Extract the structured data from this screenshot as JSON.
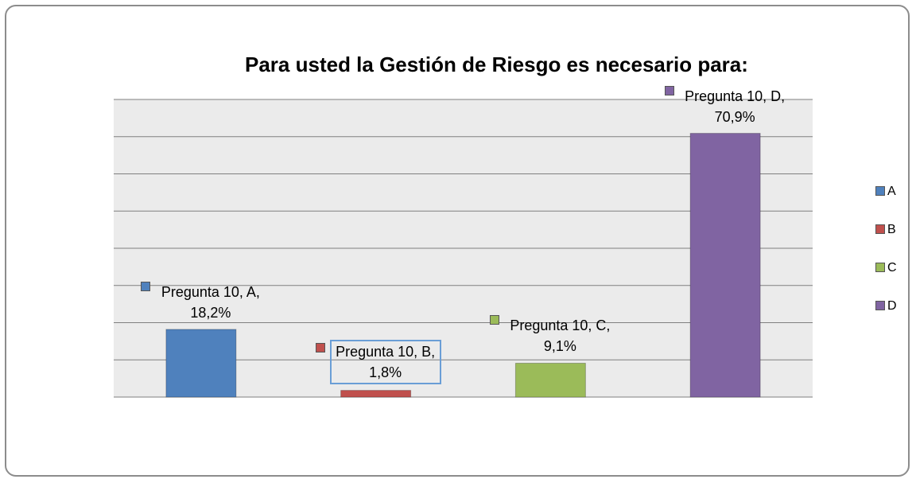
{
  "chart_data": {
    "type": "bar",
    "title": "Para usted la Gestión de Riesgo es necesario para:",
    "series": [
      {
        "name": "A",
        "color": "#4f81bd",
        "values": [
          18.2
        ],
        "value_labels": [
          "Pregunta 10, A, 18,2%"
        ]
      },
      {
        "name": "B",
        "color": "#c0504d",
        "values": [
          1.8
        ],
        "value_labels": [
          "Pregunta 10, B, 1,8%"
        ]
      },
      {
        "name": "C",
        "color": "#9bbb59",
        "values": [
          9.1
        ],
        "value_labels": [
          "Pregunta 10, C, 9,1%"
        ]
      },
      {
        "name": "D",
        "color": "#8064a2",
        "values": [
          70.9
        ],
        "value_labels": [
          "Pregunta 10, D, 70,9%"
        ]
      }
    ],
    "ylim": [
      0,
      80
    ],
    "yticks": [
      0,
      10,
      20,
      30,
      40,
      50,
      60,
      70,
      80
    ],
    "grid": true
  }
}
